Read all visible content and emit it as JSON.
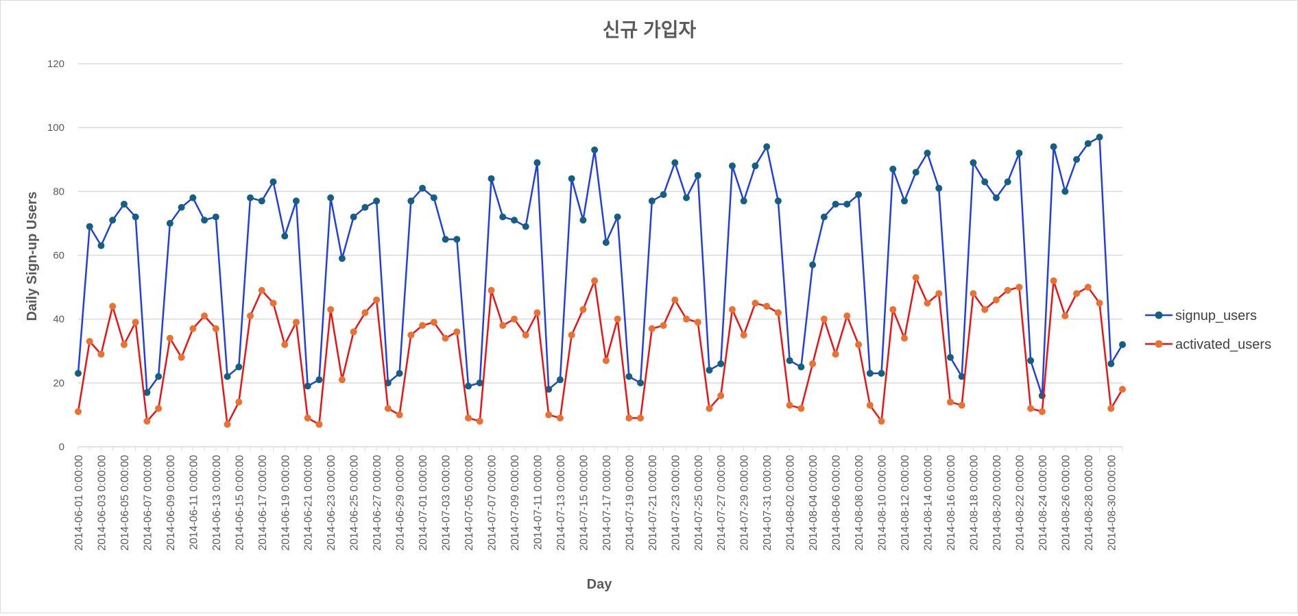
{
  "chart_data": {
    "type": "line",
    "title": "신규 가입자",
    "xlabel": "Day",
    "ylabel": "Daily Sign-up Users",
    "ylim": [
      0,
      120
    ],
    "yticks": [
      0,
      20,
      40,
      60,
      80,
      100,
      120
    ],
    "grid": true,
    "legend_position": "right",
    "x": [
      "2014-06-01 0:00:00",
      "2014-06-02 0:00:00",
      "2014-06-03 0:00:00",
      "2014-06-04 0:00:00",
      "2014-06-05 0:00:00",
      "2014-06-06 0:00:00",
      "2014-06-07 0:00:00",
      "2014-06-08 0:00:00",
      "2014-06-09 0:00:00",
      "2014-06-10 0:00:00",
      "2014-06-11 0:00:00",
      "2014-06-12 0:00:00",
      "2014-06-13 0:00:00",
      "2014-06-14 0:00:00",
      "2014-06-15 0:00:00",
      "2014-06-16 0:00:00",
      "2014-06-17 0:00:00",
      "2014-06-18 0:00:00",
      "2014-06-19 0:00:00",
      "2014-06-20 0:00:00",
      "2014-06-21 0:00:00",
      "2014-06-22 0:00:00",
      "2014-06-23 0:00:00",
      "2014-06-24 0:00:00",
      "2014-06-25 0:00:00",
      "2014-06-26 0:00:00",
      "2014-06-27 0:00:00",
      "2014-06-28 0:00:00",
      "2014-06-29 0:00:00",
      "2014-06-30 0:00:00",
      "2014-07-01 0:00:00",
      "2014-07-02 0:00:00",
      "2014-07-03 0:00:00",
      "2014-07-04 0:00:00",
      "2014-07-05 0:00:00",
      "2014-07-06 0:00:00",
      "2014-07-07 0:00:00",
      "2014-07-08 0:00:00",
      "2014-07-09 0:00:00",
      "2014-07-10 0:00:00",
      "2014-07-11 0:00:00",
      "2014-07-12 0:00:00",
      "2014-07-13 0:00:00",
      "2014-07-14 0:00:00",
      "2014-07-15 0:00:00",
      "2014-07-16 0:00:00",
      "2014-07-17 0:00:00",
      "2014-07-18 0:00:00",
      "2014-07-19 0:00:00",
      "2014-07-20 0:00:00",
      "2014-07-21 0:00:00",
      "2014-07-22 0:00:00",
      "2014-07-23 0:00:00",
      "2014-07-24 0:00:00",
      "2014-07-25 0:00:00",
      "2014-07-26 0:00:00",
      "2014-07-27 0:00:00",
      "2014-07-28 0:00:00",
      "2014-07-29 0:00:00",
      "2014-07-30 0:00:00",
      "2014-07-31 0:00:00",
      "2014-08-01 0:00:00",
      "2014-08-02 0:00:00",
      "2014-08-03 0:00:00",
      "2014-08-04 0:00:00",
      "2014-08-05 0:00:00",
      "2014-08-06 0:00:00",
      "2014-08-07 0:00:00",
      "2014-08-08 0:00:00",
      "2014-08-09 0:00:00",
      "2014-08-10 0:00:00",
      "2014-08-11 0:00:00",
      "2014-08-12 0:00:00",
      "2014-08-13 0:00:00",
      "2014-08-14 0:00:00",
      "2014-08-15 0:00:00",
      "2014-08-16 0:00:00",
      "2014-08-17 0:00:00",
      "2014-08-18 0:00:00",
      "2014-08-19 0:00:00",
      "2014-08-20 0:00:00",
      "2014-08-21 0:00:00",
      "2014-08-22 0:00:00",
      "2014-08-23 0:00:00",
      "2014-08-24 0:00:00",
      "2014-08-25 0:00:00",
      "2014-08-26 0:00:00",
      "2014-08-27 0:00:00",
      "2014-08-28 0:00:00",
      "2014-08-29 0:00:00",
      "2014-08-30 0:00:00",
      "2014-08-31 0:00:00"
    ],
    "x_tick_labels_shown": [
      "2014-06-01 0:00:00",
      "2014-06-03 0:00:00",
      "2014-06-05 0:00:00",
      "2014-06-07 0:00:00",
      "2014-06-09 0:00:00",
      "2014-06-11 0:00:00",
      "2014-06-13 0:00:00",
      "2014-06-15 0:00:00",
      "2014-06-17 0:00:00",
      "2014-06-19 0:00:00",
      "2014-06-21 0:00:00",
      "2014-06-23 0:00:00",
      "2014-06-25 0:00:00",
      "2014-06-27 0:00:00",
      "2014-06-29 0:00:00",
      "2014-07-01 0:00:00",
      "2014-07-03 0:00:00",
      "2014-07-05 0:00:00",
      "2014-07-07 0:00:00",
      "2014-07-09 0:00:00",
      "2014-07-11 0:00:00",
      "2014-07-13 0:00:00",
      "2014-07-15 0:00:00",
      "2014-07-17 0:00:00",
      "2014-07-19 0:00:00",
      "2014-07-21 0:00:00",
      "2014-07-23 0:00:00",
      "2014-07-25 0:00:00",
      "2014-07-27 0:00:00",
      "2014-07-29 0:00:00",
      "2014-07-31 0:00:00",
      "2014-08-02 0:00:00",
      "2014-08-04 0:00:00",
      "2014-08-06 0:00:00",
      "2014-08-08 0:00:00",
      "2014-08-10 0:00:00",
      "2014-08-12 0:00:00",
      "2014-08-14 0:00:00",
      "2014-08-16 0:00:00",
      "2014-08-18 0:00:00",
      "2014-08-20 0:00:00",
      "2014-08-22 0:00:00",
      "2014-08-24 0:00:00",
      "2014-08-26 0:00:00",
      "2014-08-28 0:00:00",
      "2014-08-30 0:00:00"
    ],
    "series": [
      {
        "name": "signup_users",
        "line_color": "#1f3fe0",
        "marker_color": "#156082",
        "values": [
          23,
          69,
          63,
          71,
          76,
          72,
          17,
          22,
          70,
          75,
          78,
          71,
          72,
          22,
          25,
          78,
          77,
          83,
          66,
          77,
          19,
          21,
          78,
          59,
          72,
          75,
          77,
          20,
          23,
          77,
          81,
          78,
          65,
          65,
          19,
          20,
          84,
          72,
          71,
          69,
          89,
          18,
          21,
          84,
          71,
          93,
          64,
          72,
          22,
          20,
          77,
          79,
          89,
          78,
          85,
          24,
          26,
          88,
          77,
          88,
          94,
          77,
          27,
          25,
          57,
          72,
          76,
          76,
          79,
          23,
          23,
          87,
          77,
          86,
          92,
          81,
          28,
          22,
          89,
          83,
          78,
          83,
          92,
          27,
          16,
          94,
          80,
          90,
          95,
          97,
          26,
          32
        ]
      },
      {
        "name": "activated_users",
        "line_color": "#ee1111",
        "marker_color": "#e97132",
        "values": [
          11,
          33,
          29,
          44,
          32,
          39,
          8,
          12,
          34,
          28,
          37,
          41,
          37,
          7,
          14,
          41,
          49,
          45,
          32,
          39,
          9,
          7,
          43,
          21,
          36,
          42,
          46,
          12,
          10,
          35,
          38,
          39,
          34,
          36,
          9,
          8,
          49,
          38,
          40,
          35,
          42,
          10,
          9,
          35,
          43,
          52,
          27,
          40,
          9,
          9,
          37,
          38,
          46,
          40,
          39,
          12,
          16,
          43,
          35,
          45,
          44,
          42,
          13,
          12,
          26,
          40,
          29,
          41,
          32,
          13,
          8,
          43,
          34,
          53,
          45,
          48,
          14,
          13,
          48,
          43,
          46,
          49,
          50,
          12,
          11,
          52,
          41,
          48,
          50,
          45,
          12,
          18
        ]
      }
    ]
  }
}
